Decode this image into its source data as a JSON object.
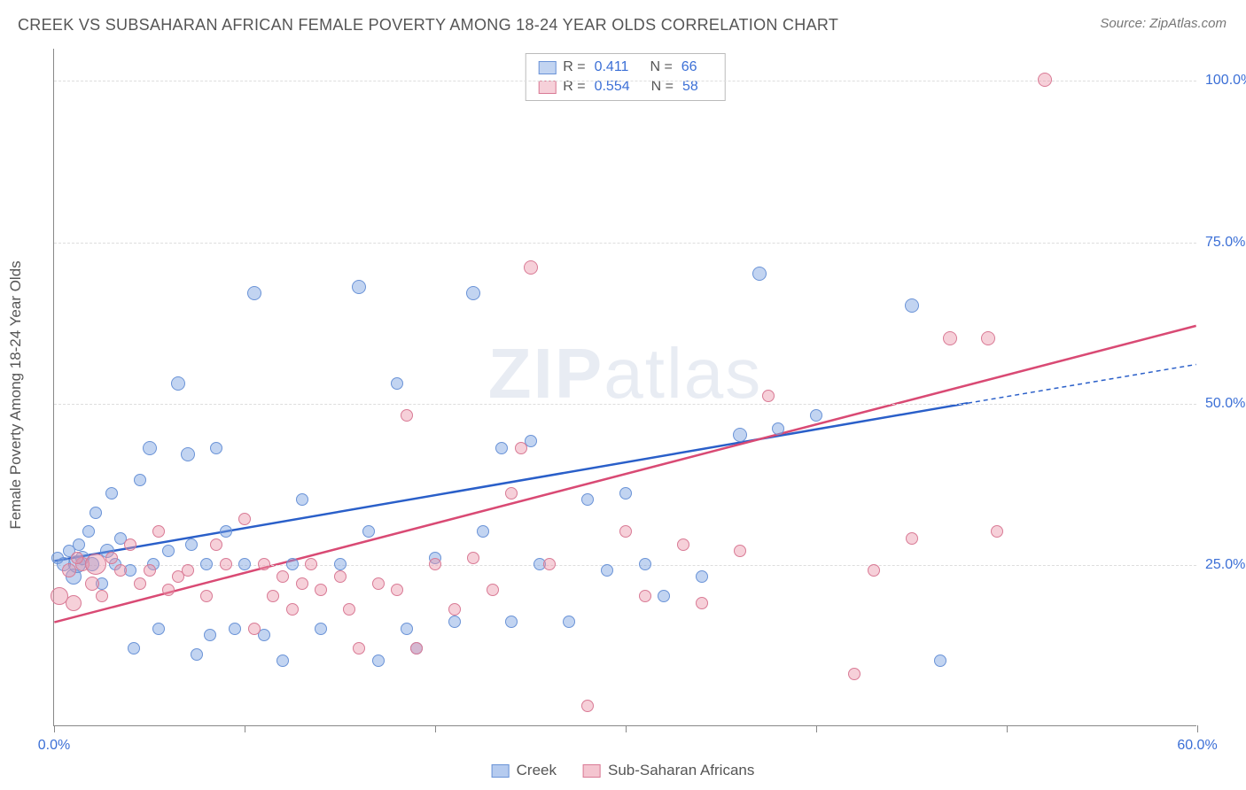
{
  "title": "CREEK VS SUBSAHARAN AFRICAN FEMALE POVERTY AMONG 18-24 YEAR OLDS CORRELATION CHART",
  "source_label": "Source:",
  "source_value": "ZipAtlas.com",
  "y_axis_label": "Female Poverty Among 18-24 Year Olds",
  "watermark_a": "ZIP",
  "watermark_b": "atlas",
  "plot": {
    "xlim": [
      0,
      60
    ],
    "ylim": [
      0,
      105
    ],
    "x_ticks": [
      0,
      10,
      20,
      30,
      40,
      50,
      60
    ],
    "x_tick_labels": {
      "0": "0.0%",
      "60": "60.0%"
    },
    "y_grid": [
      25,
      50,
      75,
      100
    ],
    "y_tick_labels": {
      "25": "25.0%",
      "50": "50.0%",
      "75": "75.0%",
      "100": "100.0%"
    },
    "text_color": "#3b6fd6",
    "grid_color": "#dddddd",
    "axis_color": "#888888",
    "background_color": "#ffffff"
  },
  "series": [
    {
      "name": "Creek",
      "fill": "rgba(120,160,225,0.45)",
      "stroke": "#6a93d7",
      "R": "0.411",
      "N": "66",
      "trend": {
        "x1": 0,
        "y1": 25.5,
        "x2": 48,
        "y2": 50,
        "x2b": 60,
        "y2b": 56,
        "color": "#2a5fc9",
        "width": 2.5
      },
      "points": [
        {
          "x": 0.2,
          "y": 26,
          "r": 7
        },
        {
          "x": 0.5,
          "y": 25,
          "r": 8
        },
        {
          "x": 0.8,
          "y": 27,
          "r": 7
        },
        {
          "x": 1.0,
          "y": 23,
          "r": 9
        },
        {
          "x": 1.2,
          "y": 25,
          "r": 10
        },
        {
          "x": 1.3,
          "y": 28,
          "r": 7
        },
        {
          "x": 1.5,
          "y": 26,
          "r": 8
        },
        {
          "x": 1.8,
          "y": 30,
          "r": 7
        },
        {
          "x": 2.0,
          "y": 25,
          "r": 8
        },
        {
          "x": 2.2,
          "y": 33,
          "r": 7
        },
        {
          "x": 2.5,
          "y": 22,
          "r": 7
        },
        {
          "x": 2.8,
          "y": 27,
          "r": 8
        },
        {
          "x": 3.0,
          "y": 36,
          "r": 7
        },
        {
          "x": 3.2,
          "y": 25,
          "r": 7
        },
        {
          "x": 3.5,
          "y": 29,
          "r": 7
        },
        {
          "x": 4.0,
          "y": 24,
          "r": 7
        },
        {
          "x": 4.2,
          "y": 12,
          "r": 7
        },
        {
          "x": 4.5,
          "y": 38,
          "r": 7
        },
        {
          "x": 5.0,
          "y": 43,
          "r": 8
        },
        {
          "x": 5.2,
          "y": 25,
          "r": 7
        },
        {
          "x": 5.5,
          "y": 15,
          "r": 7
        },
        {
          "x": 6.0,
          "y": 27,
          "r": 7
        },
        {
          "x": 6.5,
          "y": 53,
          "r": 8
        },
        {
          "x": 7.0,
          "y": 42,
          "r": 8
        },
        {
          "x": 7.2,
          "y": 28,
          "r": 7
        },
        {
          "x": 7.5,
          "y": 11,
          "r": 7
        },
        {
          "x": 8.0,
          "y": 25,
          "r": 7
        },
        {
          "x": 8.2,
          "y": 14,
          "r": 7
        },
        {
          "x": 8.5,
          "y": 43,
          "r": 7
        },
        {
          "x": 9.0,
          "y": 30,
          "r": 7
        },
        {
          "x": 9.5,
          "y": 15,
          "r": 7
        },
        {
          "x": 10.0,
          "y": 25,
          "r": 7
        },
        {
          "x": 10.5,
          "y": 67,
          "r": 8
        },
        {
          "x": 11.0,
          "y": 14,
          "r": 7
        },
        {
          "x": 12.0,
          "y": 10,
          "r": 7
        },
        {
          "x": 12.5,
          "y": 25,
          "r": 7
        },
        {
          "x": 13.0,
          "y": 35,
          "r": 7
        },
        {
          "x": 14.0,
          "y": 15,
          "r": 7
        },
        {
          "x": 15.0,
          "y": 25,
          "r": 7
        },
        {
          "x": 16.0,
          "y": 68,
          "r": 8
        },
        {
          "x": 16.5,
          "y": 30,
          "r": 7
        },
        {
          "x": 17.0,
          "y": 10,
          "r": 7
        },
        {
          "x": 18.0,
          "y": 53,
          "r": 7
        },
        {
          "x": 18.5,
          "y": 15,
          "r": 7
        },
        {
          "x": 19.0,
          "y": 12,
          "r": 7
        },
        {
          "x": 20.0,
          "y": 26,
          "r": 7
        },
        {
          "x": 21.0,
          "y": 16,
          "r": 7
        },
        {
          "x": 22.0,
          "y": 67,
          "r": 8
        },
        {
          "x": 22.5,
          "y": 30,
          "r": 7
        },
        {
          "x": 23.5,
          "y": 43,
          "r": 7
        },
        {
          "x": 24.0,
          "y": 16,
          "r": 7
        },
        {
          "x": 25.0,
          "y": 44,
          "r": 7
        },
        {
          "x": 25.5,
          "y": 25,
          "r": 7
        },
        {
          "x": 27.0,
          "y": 16,
          "r": 7
        },
        {
          "x": 28.0,
          "y": 35,
          "r": 7
        },
        {
          "x": 29.0,
          "y": 24,
          "r": 7
        },
        {
          "x": 30.0,
          "y": 36,
          "r": 7
        },
        {
          "x": 31.0,
          "y": 25,
          "r": 7
        },
        {
          "x": 32.0,
          "y": 20,
          "r": 7
        },
        {
          "x": 34.0,
          "y": 23,
          "r": 7
        },
        {
          "x": 36.0,
          "y": 45,
          "r": 8
        },
        {
          "x": 37.0,
          "y": 70,
          "r": 8
        },
        {
          "x": 38.0,
          "y": 46,
          "r": 7
        },
        {
          "x": 45.0,
          "y": 65,
          "r": 8
        },
        {
          "x": 46.5,
          "y": 10,
          "r": 7
        },
        {
          "x": 40.0,
          "y": 48,
          "r": 7
        }
      ]
    },
    {
      "name": "Sub-Saharan Africans",
      "fill": "rgba(235,150,170,0.45)",
      "stroke": "#d97a95",
      "R": "0.554",
      "N": "58",
      "trend": {
        "x1": 0,
        "y1": 16,
        "x2": 60,
        "y2": 62,
        "color": "#d94a74",
        "width": 2.5
      },
      "points": [
        {
          "x": 0.3,
          "y": 20,
          "r": 10
        },
        {
          "x": 0.8,
          "y": 24,
          "r": 8
        },
        {
          "x": 1.0,
          "y": 19,
          "r": 9
        },
        {
          "x": 1.5,
          "y": 25,
          "r": 8
        },
        {
          "x": 2.0,
          "y": 22,
          "r": 8
        },
        {
          "x": 2.2,
          "y": 25,
          "r": 12
        },
        {
          "x": 2.5,
          "y": 20,
          "r": 7
        },
        {
          "x": 3.0,
          "y": 26,
          "r": 7
        },
        {
          "x": 3.5,
          "y": 24,
          "r": 7
        },
        {
          "x": 4.0,
          "y": 28,
          "r": 7
        },
        {
          "x": 4.5,
          "y": 22,
          "r": 7
        },
        {
          "x": 5.0,
          "y": 24,
          "r": 7
        },
        {
          "x": 5.5,
          "y": 30,
          "r": 7
        },
        {
          "x": 6.0,
          "y": 21,
          "r": 7
        },
        {
          "x": 6.5,
          "y": 23,
          "r": 7
        },
        {
          "x": 7.0,
          "y": 24,
          "r": 7
        },
        {
          "x": 8.0,
          "y": 20,
          "r": 7
        },
        {
          "x": 8.5,
          "y": 28,
          "r": 7
        },
        {
          "x": 9.0,
          "y": 25,
          "r": 7
        },
        {
          "x": 10.0,
          "y": 32,
          "r": 7
        },
        {
          "x": 10.5,
          "y": 15,
          "r": 7
        },
        {
          "x": 11.0,
          "y": 25,
          "r": 7
        },
        {
          "x": 11.5,
          "y": 20,
          "r": 7
        },
        {
          "x": 12.0,
          "y": 23,
          "r": 7
        },
        {
          "x": 12.5,
          "y": 18,
          "r": 7
        },
        {
          "x": 13.0,
          "y": 22,
          "r": 7
        },
        {
          "x": 13.5,
          "y": 25,
          "r": 7
        },
        {
          "x": 14.0,
          "y": 21,
          "r": 7
        },
        {
          "x": 15.0,
          "y": 23,
          "r": 7
        },
        {
          "x": 15.5,
          "y": 18,
          "r": 7
        },
        {
          "x": 16.0,
          "y": 12,
          "r": 7
        },
        {
          "x": 17.0,
          "y": 22,
          "r": 7
        },
        {
          "x": 18.0,
          "y": 21,
          "r": 7
        },
        {
          "x": 18.5,
          "y": 48,
          "r": 7
        },
        {
          "x": 19.0,
          "y": 12,
          "r": 7
        },
        {
          "x": 20.0,
          "y": 25,
          "r": 7
        },
        {
          "x": 21.0,
          "y": 18,
          "r": 7
        },
        {
          "x": 22.0,
          "y": 26,
          "r": 7
        },
        {
          "x": 23.0,
          "y": 21,
          "r": 7
        },
        {
          "x": 24.0,
          "y": 36,
          "r": 7
        },
        {
          "x": 24.5,
          "y": 43,
          "r": 7
        },
        {
          "x": 25.0,
          "y": 71,
          "r": 8
        },
        {
          "x": 26.0,
          "y": 25,
          "r": 7
        },
        {
          "x": 28.0,
          "y": 3,
          "r": 7
        },
        {
          "x": 30.0,
          "y": 30,
          "r": 7
        },
        {
          "x": 31.0,
          "y": 20,
          "r": 7
        },
        {
          "x": 33.0,
          "y": 28,
          "r": 7
        },
        {
          "x": 34.0,
          "y": 19,
          "r": 7
        },
        {
          "x": 36.0,
          "y": 27,
          "r": 7
        },
        {
          "x": 37.5,
          "y": 51,
          "r": 7
        },
        {
          "x": 42.0,
          "y": 8,
          "r": 7
        },
        {
          "x": 43.0,
          "y": 24,
          "r": 7
        },
        {
          "x": 45.0,
          "y": 29,
          "r": 7
        },
        {
          "x": 47.0,
          "y": 60,
          "r": 8
        },
        {
          "x": 49.0,
          "y": 60,
          "r": 8
        },
        {
          "x": 49.5,
          "y": 30,
          "r": 7
        },
        {
          "x": 52.0,
          "y": 100,
          "r": 8
        },
        {
          "x": 1.2,
          "y": 26,
          "r": 7
        }
      ]
    }
  ],
  "legend_bottom": [
    {
      "label": "Creek",
      "fill": "rgba(120,160,225,0.55)",
      "stroke": "#6a93d7"
    },
    {
      "label": "Sub-Saharan Africans",
      "fill": "rgba(235,150,170,0.55)",
      "stroke": "#d97a95"
    }
  ]
}
